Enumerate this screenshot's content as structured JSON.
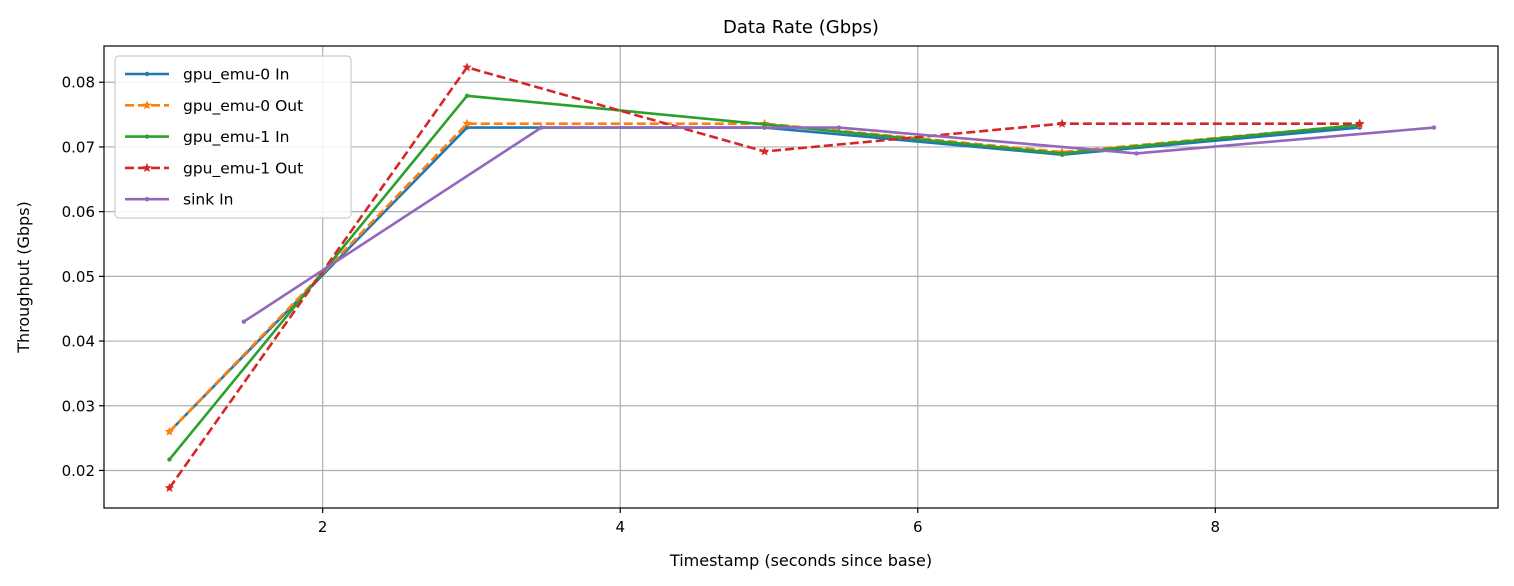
{
  "chart_data": {
    "type": "line",
    "title": "Data Rate (Gbps)",
    "xlabel": "Timestamp (seconds since base)",
    "ylabel": "Throughput (Gbps)",
    "xlim": [
      0.53,
      9.9
    ],
    "ylim": [
      0.0142,
      0.0856
    ],
    "xticks": [
      2,
      4,
      6,
      8
    ],
    "yticks": [
      0.02,
      0.03,
      0.04,
      0.05,
      0.06,
      0.07,
      0.08
    ],
    "xtick_labels": [
      "2",
      "4",
      "6",
      "8"
    ],
    "ytick_labels": [
      "0.02",
      "0.03",
      "0.04",
      "0.05",
      "0.06",
      "0.07",
      "0.08"
    ],
    "grid": true,
    "legend_position": "top-left",
    "series": [
      {
        "name": "gpu_emu-0 In",
        "color": "#1f77b4",
        "dash": "solid",
        "marker": "dot",
        "x": [
          0.97,
          2.97,
          4.97,
          6.97,
          8.97
        ],
        "y": [
          0.026,
          0.073,
          0.073,
          0.0688,
          0.073
        ]
      },
      {
        "name": "gpu_emu-0 Out",
        "color": "#ff7f0e",
        "dash": "dashed",
        "marker": "star",
        "x": [
          0.97,
          2.97,
          4.97,
          6.97,
          8.97
        ],
        "y": [
          0.026,
          0.0736,
          0.0736,
          0.0692,
          0.0734
        ]
      },
      {
        "name": "gpu_emu-1 In",
        "color": "#2ca02c",
        "dash": "solid",
        "marker": "dot",
        "x": [
          0.97,
          2.97,
          4.97,
          6.97,
          8.97
        ],
        "y": [
          0.0217,
          0.0779,
          0.0735,
          0.069,
          0.0734
        ]
      },
      {
        "name": "gpu_emu-1 Out",
        "color": "#d62728",
        "dash": "dashed",
        "marker": "star",
        "x": [
          0.97,
          2.97,
          4.97,
          6.97,
          8.97
        ],
        "y": [
          0.0173,
          0.0823,
          0.0693,
          0.0736,
          0.0736
        ]
      },
      {
        "name": "sink In",
        "color": "#9467bd",
        "dash": "solid",
        "marker": "dot",
        "x": [
          1.47,
          3.47,
          5.47,
          7.47,
          9.47
        ],
        "y": [
          0.043,
          0.073,
          0.073,
          0.069,
          0.073
        ]
      }
    ]
  }
}
